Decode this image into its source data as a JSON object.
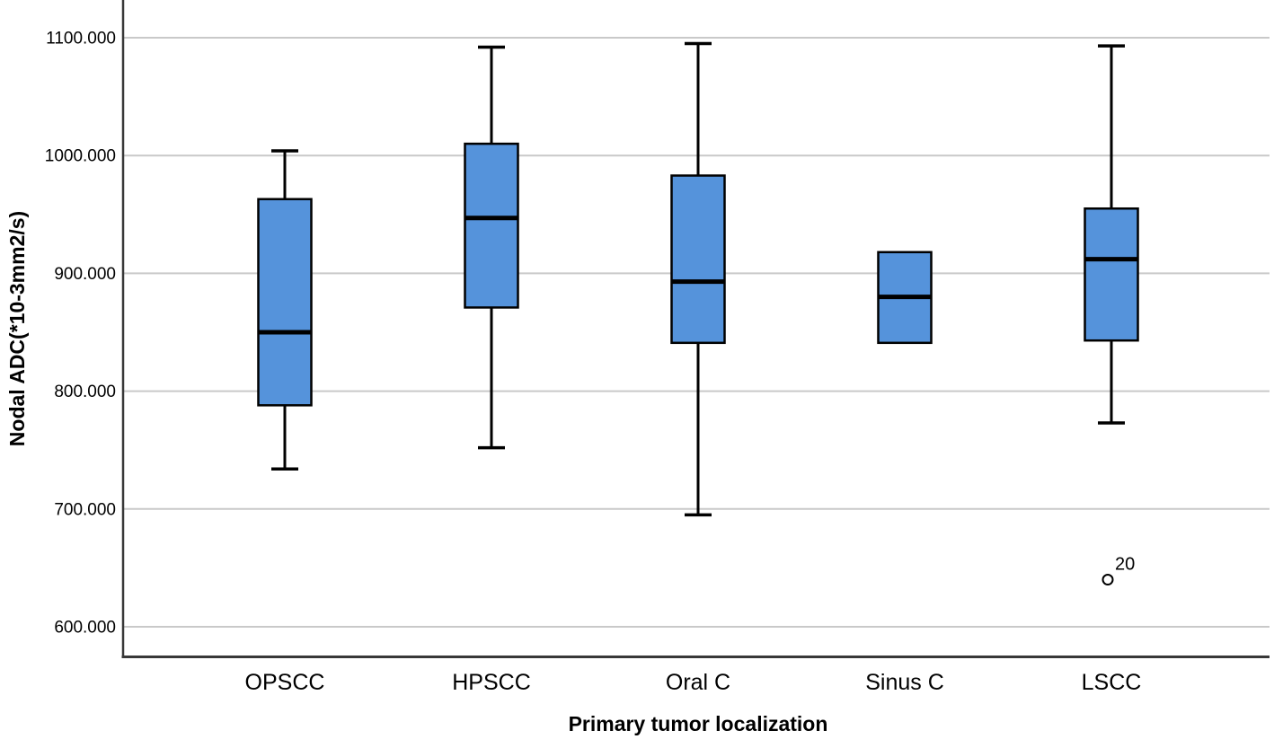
{
  "figure": {
    "background": "#ffffff"
  },
  "chart_data": {
    "type": "boxplot",
    "title": "",
    "xlabel": "Primary tumor localization",
    "ylabel": "Nodal ADC(*10-3mm2/s)",
    "categories": [
      "OPSCC",
      "HPSCC",
      "Oral C",
      "Sinus C",
      "LSCC"
    ],
    "y_ticks": [
      {
        "value": 600,
        "label": "600.000"
      },
      {
        "value": 700,
        "label": "700.000"
      },
      {
        "value": 800,
        "label": "800.000"
      },
      {
        "value": 900,
        "label": "900.000"
      },
      {
        "value": 1000,
        "label": "1000.000"
      },
      {
        "value": 1100,
        "label": "1100.000"
      }
    ],
    "ylim": [
      575,
      1132
    ],
    "grid": true,
    "legend": false,
    "boxes": [
      {
        "category": "OPSCC",
        "whisker_low": 734,
        "q1": 788,
        "median": 850,
        "q3": 963,
        "whisker_high": 1004,
        "outliers": []
      },
      {
        "category": "HPSCC",
        "whisker_low": 752,
        "q1": 871,
        "median": 947,
        "q3": 1010,
        "whisker_high": 1092,
        "outliers": []
      },
      {
        "category": "Oral C",
        "whisker_low": 695,
        "q1": 841,
        "median": 893,
        "q3": 983,
        "whisker_high": 1095,
        "outliers": []
      },
      {
        "category": "Sinus C",
        "whisker_low": null,
        "q1": 841,
        "median": 880,
        "q3": 918,
        "whisker_high": null,
        "outliers": []
      },
      {
        "category": "LSCC",
        "whisker_low": 773,
        "q1": 843,
        "median": 912,
        "q3": 955,
        "whisker_high": 1093,
        "outliers": [
          {
            "value": 640,
            "label": "20"
          }
        ]
      }
    ],
    "colors": {
      "box_fill": "#5593DB",
      "box_border": "#000000",
      "median": "#000000",
      "whisker": "#000000",
      "outlier_stroke": "#000000",
      "outlier_fill": "#ffffff",
      "gridline": "#C9C9C9",
      "axis": "#383838",
      "text": "#000000"
    }
  }
}
